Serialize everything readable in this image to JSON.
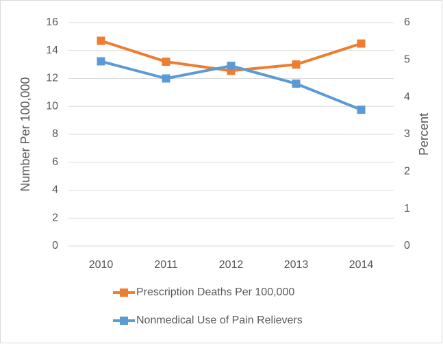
{
  "chart_data": {
    "type": "line",
    "categories": [
      "2010",
      "2011",
      "2012",
      "2013",
      "2014"
    ],
    "y_label": "Number Per 100,000",
    "y2_label": "Percent",
    "ylim": [
      0,
      16
    ],
    "yticks": [
      0,
      2,
      4,
      6,
      8,
      10,
      12,
      14,
      16
    ],
    "y2lim": [
      0,
      6
    ],
    "y2ticks": [
      0,
      1,
      2,
      3,
      4,
      5,
      6
    ],
    "grid": true,
    "legend": "bottom",
    "series": [
      {
        "name": "Prescription Deaths Per 100,000",
        "color": "#ED7D31",
        "values": [
          14.7,
          13.2,
          12.55,
          13.0,
          14.5
        ]
      },
      {
        "name": "Nonmedical Use of Pain Relievers",
        "color": "#5B9BD5",
        "axis": "y2",
        "values": [
          4.96,
          4.5,
          4.84,
          4.36,
          3.66
        ]
      }
    ]
  }
}
